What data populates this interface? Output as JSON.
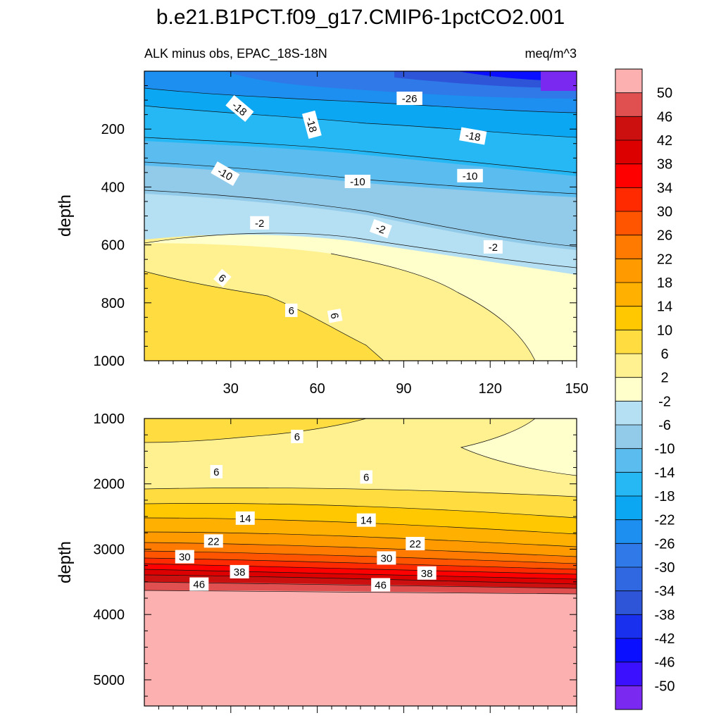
{
  "chart_data": {
    "type": "heatmap",
    "title": "b.e21.B1PCT.f09_g17.CMIP6-1pctCO2.001",
    "subtitle_left": "ALK minus obs, EPAC_18S-18N",
    "subtitle_right": "meq/m^3",
    "xlim": [
      0,
      150
    ],
    "x_ticks": [
      "30",
      "60",
      "90",
      "120",
      "150"
    ],
    "panels": [
      {
        "name": "upper",
        "ylabel": "depth",
        "ylim": [
          0,
          1000
        ],
        "y_ticks": [
          "200",
          "400",
          "600",
          "800",
          "1000"
        ],
        "contour_labels": [
          {
            "text": "-18",
            "x": 33,
            "y": 130,
            "rot": 40
          },
          {
            "text": "-18",
            "x": 58,
            "y": 185,
            "rot": 75
          },
          {
            "text": "-26",
            "x": 92,
            "y": 95,
            "rot": 0
          },
          {
            "text": "-18",
            "x": 114,
            "y": 225,
            "rot": 10
          },
          {
            "text": "-10",
            "x": 28,
            "y": 355,
            "rot": 30
          },
          {
            "text": "-10",
            "x": 74,
            "y": 382,
            "rot": 0
          },
          {
            "text": "-10",
            "x": 113,
            "y": 362,
            "rot": 0
          },
          {
            "text": "-2",
            "x": 40,
            "y": 525,
            "rot": 0
          },
          {
            "text": "-2",
            "x": 82,
            "y": 545,
            "rot": 20
          },
          {
            "text": "-2",
            "x": 121,
            "y": 608,
            "rot": 0
          },
          {
            "text": "6",
            "x": 27,
            "y": 715,
            "rot": 40
          },
          {
            "text": "6",
            "x": 51,
            "y": 827,
            "rot": 0
          },
          {
            "text": "6",
            "x": 66,
            "y": 845,
            "rot": 80
          }
        ]
      },
      {
        "name": "lower",
        "ylabel": "depth",
        "ylim": [
          1000,
          5400
        ],
        "y_ticks": [
          "1000",
          "2000",
          "3000",
          "4000",
          "5000"
        ],
        "contour_labels": [
          {
            "text": "6",
            "x": 53,
            "y": 1280,
            "rot": 0
          },
          {
            "text": "6",
            "x": 25,
            "y": 1820,
            "rot": 0
          },
          {
            "text": "6",
            "x": 77,
            "y": 1900,
            "rot": 0
          },
          {
            "text": "14",
            "x": 35,
            "y": 2530,
            "rot": 0
          },
          {
            "text": "14",
            "x": 77,
            "y": 2560,
            "rot": 0
          },
          {
            "text": "22",
            "x": 24,
            "y": 2880,
            "rot": 0
          },
          {
            "text": "22",
            "x": 94,
            "y": 2920,
            "rot": 0
          },
          {
            "text": "30",
            "x": 14,
            "y": 3120,
            "rot": 0
          },
          {
            "text": "30",
            "x": 84,
            "y": 3140,
            "rot": 0
          },
          {
            "text": "38",
            "x": 33,
            "y": 3350,
            "rot": 0
          },
          {
            "text": "38",
            "x": 98,
            "y": 3370,
            "rot": 0
          },
          {
            "text": "46",
            "x": 19,
            "y": 3540,
            "rot": 0
          },
          {
            "text": "46",
            "x": 82,
            "y": 3550,
            "rot": 0
          }
        ]
      }
    ],
    "colorbar": {
      "labels": [
        "50",
        "46",
        "42",
        "38",
        "34",
        "30",
        "26",
        "22",
        "18",
        "14",
        "10",
        "6",
        "2",
        "-2",
        "-6",
        "-10",
        "-14",
        "-18",
        "-22",
        "-26",
        "-30",
        "-34",
        "-38",
        "-42",
        "-46",
        "-50"
      ],
      "colors": [
        "#fdb0b0",
        "#e05050",
        "#cc1010",
        "#dd0000",
        "#ff0000",
        "#ff2a00",
        "#ff5500",
        "#ff7a00",
        "#ff9a00",
        "#ffb000",
        "#ffc800",
        "#ffdd40",
        "#fff090",
        "#ffffcc",
        "#b5dff2",
        "#92cbea",
        "#5bbcf0",
        "#25b8f5",
        "#0ba7f3",
        "#1d8ff0",
        "#2f7ae8",
        "#3068e2",
        "#2e55d8",
        "#1a30ef",
        "#0a10ff",
        "#3a10ff",
        "#7a2af0"
      ]
    }
  }
}
